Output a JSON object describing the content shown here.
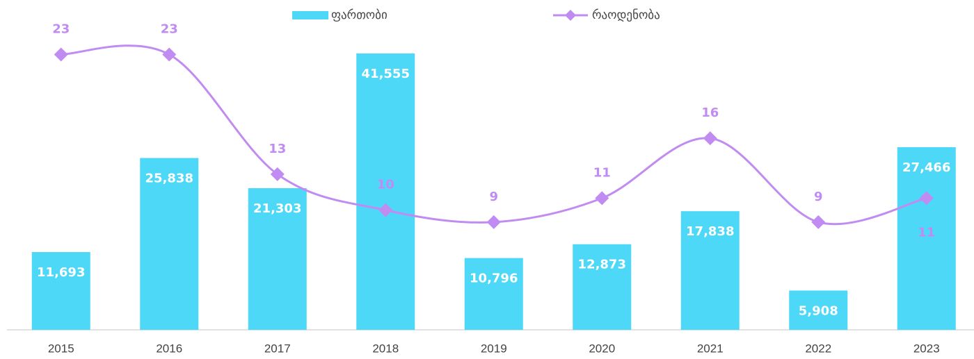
{
  "chart_data": {
    "type": "bar",
    "categories": [
      "2015",
      "2016",
      "2017",
      "2018",
      "2019",
      "2020",
      "2021",
      "2022",
      "2023"
    ],
    "series": [
      {
        "name": "ფართობი",
        "type": "bar",
        "color": "#4dd8f7",
        "values": [
          11693,
          25838,
          21303,
          41555,
          10796,
          12873,
          17838,
          5908,
          27466
        ],
        "value_labels": [
          "11,693",
          "25,838",
          "21,303",
          "41,555",
          "10,796",
          "12,873",
          "17,838",
          "5,908",
          "27,466"
        ]
      },
      {
        "name": "რაოდენობა",
        "type": "line",
        "axis": "y2",
        "color": "#c18cf2",
        "values": [
          23,
          23,
          13,
          10,
          9,
          11,
          16,
          9,
          11
        ]
      }
    ],
    "ylim": [
      0,
      45000
    ],
    "y2lim": [
      0,
      25
    ],
    "legend": "top"
  }
}
